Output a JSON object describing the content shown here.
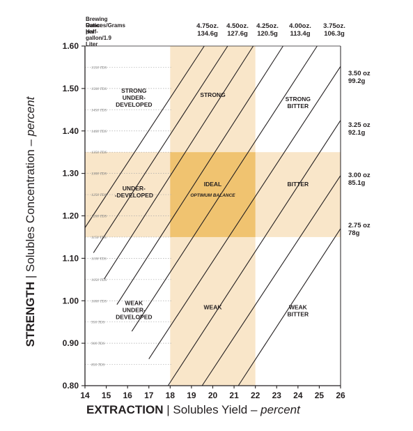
{
  "header": {
    "brewing_ratio_lines": [
      "Brewing Ratio:",
      "Ounces/Grams per",
      "Half-gallon/1.9 Liter"
    ]
  },
  "colors": {
    "zone_light": "#f9e6c9",
    "zone_ideal": "#f0c370",
    "lines": "#231f20",
    "dots": "#aaaaaa"
  },
  "chart_data": {
    "type": "line",
    "x": {
      "label_main": "EXTRACTION",
      "label_sep": "|",
      "label_rest": "Solubles Yield",
      "label_dash": "–",
      "label_unit": "percent",
      "range": [
        14,
        26
      ],
      "ticks": [
        14,
        15,
        16,
        17,
        18,
        19,
        20,
        21,
        22,
        23,
        24,
        25,
        26
      ]
    },
    "y": {
      "label_main": "STRENGTH",
      "label_sep": "|",
      "label_rest": "Solubles Concentration",
      "label_dash": "–",
      "label_unit": "percent",
      "range": [
        0.8,
        1.6
      ],
      "ticks": [
        "0.80",
        "0.90",
        "1.00",
        "1.10",
        "1.20",
        "1.30",
        "1.40",
        "1.50",
        "1.60"
      ]
    },
    "tds_ticks": [
      {
        "y": 1.55,
        "label": "1550 TDS"
      },
      {
        "y": 1.5,
        "label": "1500 TDS"
      },
      {
        "y": 1.45,
        "label": "1450 TDS"
      },
      {
        "y": 1.4,
        "label": "1400 TDS"
      },
      {
        "y": 1.35,
        "label": "1350 TDS"
      },
      {
        "y": 1.3,
        "label": "1300 TDS"
      },
      {
        "y": 1.25,
        "label": "1250 TDS"
      },
      {
        "y": 1.2,
        "label": "1200 TDS"
      },
      {
        "y": 1.15,
        "label": "1150 TDS"
      },
      {
        "y": 1.1,
        "label": "1100 TDS"
      },
      {
        "y": 1.05,
        "label": "1050 TDS"
      },
      {
        "y": 1.0,
        "label": "1000 TDS"
      },
      {
        "y": 0.95,
        "label": "950 TDS"
      },
      {
        "y": 0.9,
        "label": "900 TDS"
      },
      {
        "y": 0.85,
        "label": "850 TDS"
      }
    ],
    "zones": {
      "ideal_extraction": [
        18,
        22
      ],
      "ideal_strength": [
        1.15,
        1.35
      ]
    },
    "ratio_lines": [
      {
        "oz": "4.75oz.",
        "g": "134.6g",
        "points": [
          [
            14.0,
            1.172
          ],
          [
            19.6,
            1.6
          ]
        ]
      },
      {
        "oz": "4.50oz.",
        "g": "127.6g",
        "points": [
          [
            14.4,
            1.113
          ],
          [
            20.7,
            1.6
          ]
        ]
      },
      {
        "oz": "4.25oz.",
        "g": "120.5g",
        "points": [
          [
            14.9,
            1.051
          ],
          [
            21.9,
            1.6
          ]
        ]
      },
      {
        "oz": "4.00oz.",
        "g": "113.4g",
        "points": [
          [
            15.5,
            0.991
          ],
          [
            23.3,
            1.6
          ]
        ]
      },
      {
        "oz": "3.75oz.",
        "g": "106.3g",
        "points": [
          [
            16.2,
            0.928
          ],
          [
            24.9,
            1.6
          ]
        ]
      },
      {
        "oz": "3.50 oz",
        "g": "99.2g",
        "points": [
          [
            17.0,
            0.863
          ],
          [
            26.0,
            1.552
          ]
        ]
      },
      {
        "oz": "3.25 oz",
        "g": "92.1g",
        "points": [
          [
            17.9,
            0.8
          ],
          [
            26.0,
            1.425
          ]
        ]
      },
      {
        "oz": "3.00 oz",
        "g": "85.1g",
        "points": [
          [
            19.5,
            0.8
          ],
          [
            26.0,
            1.295
          ]
        ]
      },
      {
        "oz": "2.75 oz",
        "g": "78g",
        "points": [
          [
            21.2,
            0.8
          ],
          [
            26.0,
            1.17
          ]
        ]
      }
    ],
    "regions": [
      {
        "lines": [
          "STRONG",
          "UNDER-",
          "DEVELOPED"
        ],
        "x": 16.3,
        "y": 1.49
      },
      {
        "lines": [
          "STRONG"
        ],
        "x": 20.0,
        "y": 1.48
      },
      {
        "lines": [
          "STRONG",
          "BITTER"
        ],
        "x": 24.0,
        "y": 1.47
      },
      {
        "lines": [
          "UNDER-",
          "-DEVELOPED"
        ],
        "x": 16.3,
        "y": 1.26
      },
      {
        "lines": [
          "IDEAL"
        ],
        "x": 20.0,
        "y": 1.27
      },
      {
        "lines": [
          "BITTER"
        ],
        "x": 24.0,
        "y": 1.27
      },
      {
        "lines": [
          "WEAK",
          "UNDER-",
          "DEVELOPED"
        ],
        "x": 16.3,
        "y": 0.99
      },
      {
        "lines": [
          "WEAK"
        ],
        "x": 20.0,
        "y": 0.98
      },
      {
        "lines": [
          "WEAK",
          "BITTER"
        ],
        "x": 24.0,
        "y": 0.98
      }
    ],
    "annotations": [
      {
        "text": "OPTIMUM BALANCE",
        "x": 20.0,
        "y": 1.245
      }
    ]
  }
}
